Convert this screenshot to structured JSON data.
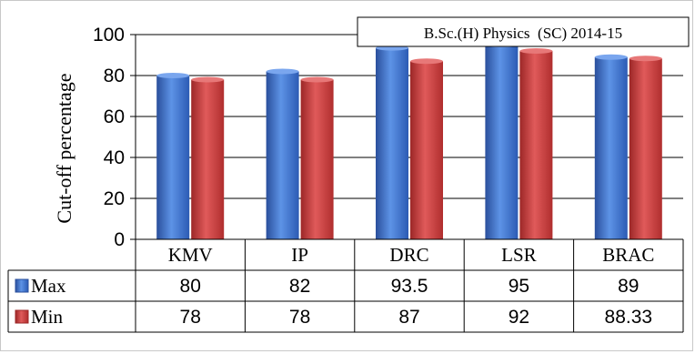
{
  "chart_data": {
    "type": "bar",
    "title": "B.Sc.(H) Physics  (SC) 2014-15",
    "ylabel": "Cut-off percentage",
    "xlabel": "",
    "categories": [
      "KMV",
      "IP",
      "DRC",
      "LSR",
      "BRAC"
    ],
    "series": [
      {
        "name": "Max",
        "values": [
          80,
          82,
          93.5,
          95,
          89
        ],
        "labels": [
          "80",
          "82",
          "93.5",
          "95",
          "89"
        ],
        "color": "#3b6fcf"
      },
      {
        "name": "Min",
        "values": [
          78,
          78,
          87,
          92,
          88.33
        ],
        "labels": [
          "78",
          "78",
          "87",
          "92",
          "88.33"
        ],
        "color": "#cc3a3a"
      }
    ],
    "ylim": [
      0,
      100
    ],
    "yticks": [
      "0",
      "20",
      "40",
      "60",
      "80",
      "100"
    ],
    "grid": true,
    "legend": "data-table"
  }
}
